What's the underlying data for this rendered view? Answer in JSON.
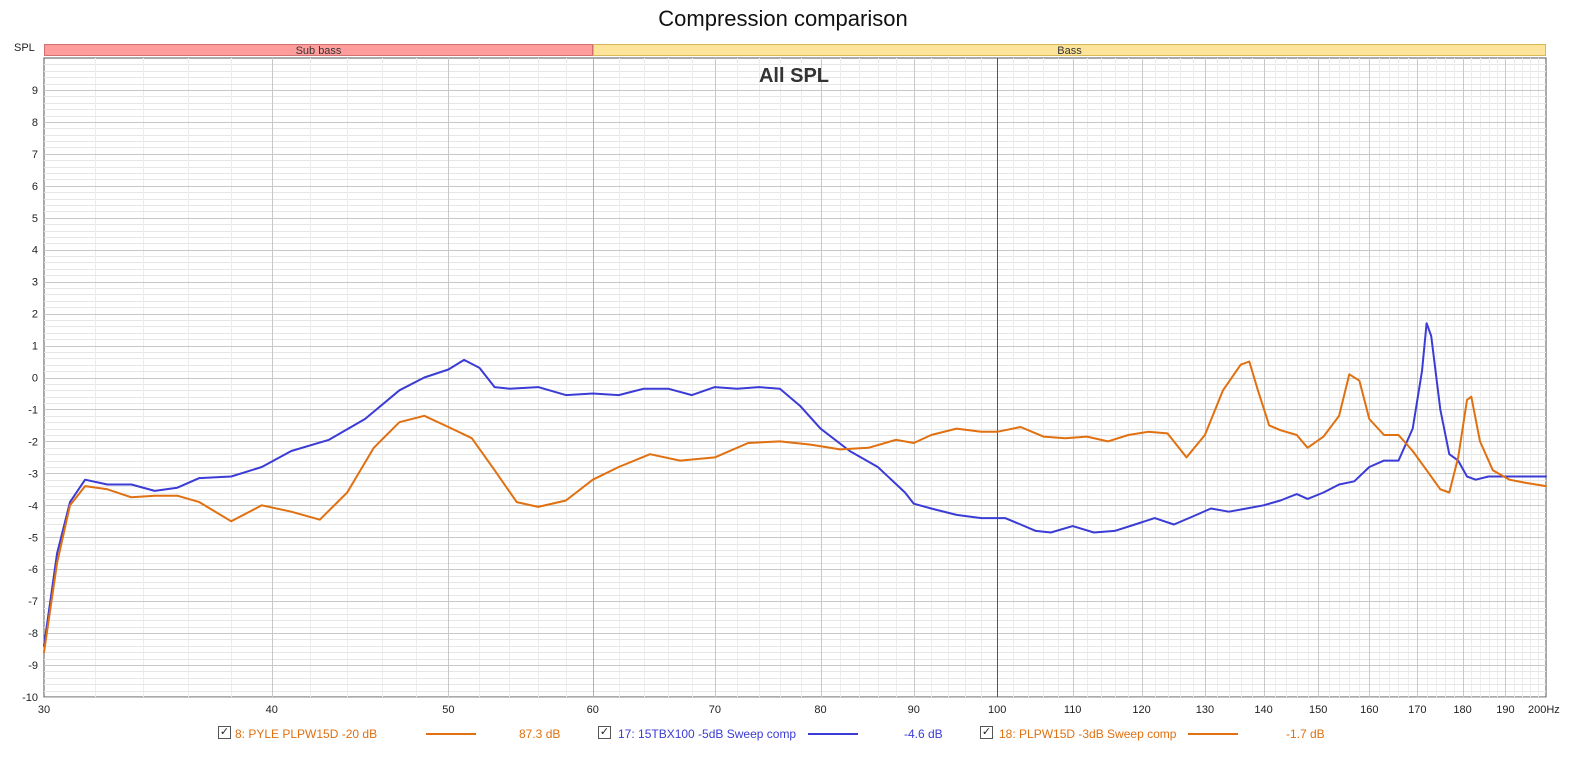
{
  "chart_data": {
    "type": "line",
    "title": "Compression comparison",
    "plot_label": "All SPL",
    "y_axis_label": "SPL",
    "x_axis": {
      "scale": "log",
      "range": [
        30,
        200
      ],
      "tick_labels": [
        "30",
        "40",
        "50",
        "60",
        "70",
        "80",
        "90",
        "100",
        "110",
        "120",
        "130",
        "140",
        "150",
        "160",
        "170",
        "180",
        "190",
        "200Hz"
      ],
      "tick_values": [
        30,
        40,
        50,
        60,
        70,
        80,
        90,
        100,
        110,
        120,
        130,
        140,
        150,
        160,
        170,
        180,
        190,
        200
      ]
    },
    "y_axis": {
      "range": [
        -10,
        10
      ],
      "tick_labels": [
        "9",
        "8",
        "7",
        "6",
        "5",
        "4",
        "3",
        "2",
        "1",
        "0",
        "-1",
        "-2",
        "-3",
        "-4",
        "-5",
        "-6",
        "-7",
        "-8",
        "-9",
        "-10"
      ],
      "tick_values": [
        9,
        8,
        7,
        6,
        5,
        4,
        3,
        2,
        1,
        0,
        -1,
        -2,
        -3,
        -4,
        -5,
        -6,
        -7,
        -8,
        -9,
        -10
      ]
    },
    "grid": true,
    "bands": [
      {
        "label": "Sub bass",
        "from": 30,
        "to": 60,
        "color": "#ff9d9d"
      },
      {
        "label": "Bass",
        "from": 60,
        "to": 200,
        "color": "#fde49a"
      }
    ],
    "series": [
      {
        "name": "17: 15TBX100 -5dB Sweep comp",
        "color": "#3b3bd6",
        "points": [
          [
            30,
            -8.4
          ],
          [
            30.5,
            -5.5
          ],
          [
            31,
            -3.9
          ],
          [
            31.6,
            -3.2
          ],
          [
            32.5,
            -3.35
          ],
          [
            33.5,
            -3.35
          ],
          [
            34.5,
            -3.55
          ],
          [
            35.5,
            -3.45
          ],
          [
            36.5,
            -3.15
          ],
          [
            38,
            -3.1
          ],
          [
            39.5,
            -2.8
          ],
          [
            41,
            -2.3
          ],
          [
            43,
            -1.95
          ],
          [
            45,
            -1.3
          ],
          [
            47,
            -0.4
          ],
          [
            48.5,
            0.0
          ],
          [
            50,
            0.25
          ],
          [
            51,
            0.55
          ],
          [
            52,
            0.3
          ],
          [
            53,
            -0.3
          ],
          [
            54,
            -0.35
          ],
          [
            56,
            -0.3
          ],
          [
            58,
            -0.55
          ],
          [
            60,
            -0.5
          ],
          [
            62,
            -0.55
          ],
          [
            64,
            -0.35
          ],
          [
            66,
            -0.35
          ],
          [
            68,
            -0.55
          ],
          [
            70,
            -0.3
          ],
          [
            72,
            -0.35
          ],
          [
            74,
            -0.3
          ],
          [
            76,
            -0.35
          ],
          [
            78,
            -0.9
          ],
          [
            80,
            -1.6
          ],
          [
            83,
            -2.3
          ],
          [
            86,
            -2.8
          ],
          [
            89,
            -3.6
          ],
          [
            90,
            -3.95
          ],
          [
            92,
            -4.1
          ],
          [
            95,
            -4.3
          ],
          [
            98,
            -4.4
          ],
          [
            101,
            -4.4
          ],
          [
            103,
            -4.6
          ],
          [
            105,
            -4.8
          ],
          [
            107,
            -4.85
          ],
          [
            110,
            -4.65
          ],
          [
            113,
            -4.85
          ],
          [
            116,
            -4.8
          ],
          [
            119,
            -4.6
          ],
          [
            122,
            -4.4
          ],
          [
            125,
            -4.6
          ],
          [
            128,
            -4.35
          ],
          [
            131,
            -4.1
          ],
          [
            134,
            -4.2
          ],
          [
            137,
            -4.1
          ],
          [
            140,
            -4.0
          ],
          [
            143,
            -3.85
          ],
          [
            146,
            -3.65
          ],
          [
            148,
            -3.8
          ],
          [
            151,
            -3.6
          ],
          [
            154,
            -3.35
          ],
          [
            157,
            -3.25
          ],
          [
            160,
            -2.8
          ],
          [
            163,
            -2.6
          ],
          [
            166,
            -2.6
          ],
          [
            169,
            -1.6
          ],
          [
            171,
            0.2
          ],
          [
            172,
            1.7
          ],
          [
            173,
            1.3
          ],
          [
            175,
            -1.0
          ],
          [
            177,
            -2.4
          ],
          [
            179,
            -2.6
          ],
          [
            181,
            -3.1
          ],
          [
            183,
            -3.2
          ],
          [
            186,
            -3.1
          ],
          [
            190,
            -3.1
          ],
          [
            195,
            -3.1
          ],
          [
            200,
            -3.1
          ]
        ]
      },
      {
        "name": "18: PLPW15D -3dB Sweep comp",
        "color": "#e07010",
        "points": [
          [
            30,
            -8.6
          ],
          [
            30.5,
            -5.8
          ],
          [
            31,
            -4.0
          ],
          [
            31.6,
            -3.4
          ],
          [
            32.5,
            -3.5
          ],
          [
            33.5,
            -3.75
          ],
          [
            34.5,
            -3.7
          ],
          [
            35.5,
            -3.7
          ],
          [
            36.5,
            -3.9
          ],
          [
            38,
            -4.5
          ],
          [
            39.5,
            -4.0
          ],
          [
            41,
            -4.2
          ],
          [
            42.5,
            -4.45
          ],
          [
            44,
            -3.6
          ],
          [
            45.5,
            -2.2
          ],
          [
            47,
            -1.4
          ],
          [
            48.5,
            -1.2
          ],
          [
            50,
            -1.55
          ],
          [
            51.5,
            -1.9
          ],
          [
            53,
            -2.9
          ],
          [
            54.5,
            -3.9
          ],
          [
            56,
            -4.05
          ],
          [
            58,
            -3.85
          ],
          [
            60,
            -3.2
          ],
          [
            62,
            -2.8
          ],
          [
            64.5,
            -2.4
          ],
          [
            67,
            -2.6
          ],
          [
            70,
            -2.5
          ],
          [
            73,
            -2.05
          ],
          [
            76,
            -2.0
          ],
          [
            79,
            -2.1
          ],
          [
            82,
            -2.25
          ],
          [
            85,
            -2.2
          ],
          [
            88,
            -1.95
          ],
          [
            90,
            -2.05
          ],
          [
            92,
            -1.8
          ],
          [
            95,
            -1.6
          ],
          [
            98,
            -1.7
          ],
          [
            100,
            -1.7
          ],
          [
            103,
            -1.55
          ],
          [
            106,
            -1.85
          ],
          [
            109,
            -1.9
          ],
          [
            112,
            -1.85
          ],
          [
            115,
            -2.0
          ],
          [
            118,
            -1.8
          ],
          [
            121,
            -1.7
          ],
          [
            124,
            -1.75
          ],
          [
            127,
            -2.5
          ],
          [
            130,
            -1.8
          ],
          [
            133,
            -0.4
          ],
          [
            136,
            0.4
          ],
          [
            137.5,
            0.5
          ],
          [
            139,
            -0.4
          ],
          [
            141,
            -1.5
          ],
          [
            143,
            -1.65
          ],
          [
            146,
            -1.8
          ],
          [
            148,
            -2.2
          ],
          [
            151,
            -1.85
          ],
          [
            154,
            -1.2
          ],
          [
            156,
            0.1
          ],
          [
            158,
            -0.1
          ],
          [
            160,
            -1.3
          ],
          [
            163,
            -1.8
          ],
          [
            166,
            -1.8
          ],
          [
            169,
            -2.3
          ],
          [
            172,
            -2.9
          ],
          [
            175,
            -3.5
          ],
          [
            177,
            -3.6
          ],
          [
            179,
            -2.5
          ],
          [
            181,
            -0.7
          ],
          [
            182,
            -0.6
          ],
          [
            184,
            -2.0
          ],
          [
            187,
            -2.9
          ],
          [
            191,
            -3.2
          ],
          [
            195,
            -3.3
          ],
          [
            200,
            -3.4
          ]
        ]
      }
    ],
    "legend": [
      {
        "label": "8: PYLE PLPW15D -20 dB",
        "value": "87.3 dB",
        "color": "#e07010",
        "checked": true
      },
      {
        "label": "17: 15TBX100 -5dB Sweep comp",
        "value": "-4.6 dB",
        "color": "#3b3bd6",
        "checked": true
      },
      {
        "label": "18: PLPW15D -3dB Sweep comp",
        "value": "-1.7 dB",
        "color": "#e07010",
        "checked": true
      }
    ]
  }
}
